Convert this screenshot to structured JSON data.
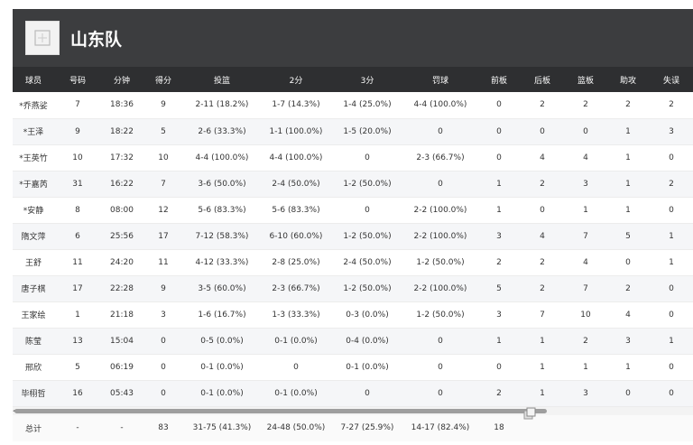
{
  "team": {
    "name": "山东队"
  },
  "columns": [
    "球员",
    "号码",
    "分钟",
    "得分",
    "投篮",
    "2分",
    "3分",
    "罚球",
    "前板",
    "后板",
    "篮板",
    "助攻",
    "失误"
  ],
  "players": [
    [
      "*乔燕娑",
      "7",
      "18:36",
      "9",
      "2-11 (18.2%)",
      "1-7 (14.3%)",
      "1-4 (25.0%)",
      "4-4 (100.0%)",
      "0",
      "2",
      "2",
      "2",
      "2"
    ],
    [
      "*王泽",
      "9",
      "18:22",
      "5",
      "2-6 (33.3%)",
      "1-1 (100.0%)",
      "1-5 (20.0%)",
      "0",
      "0",
      "0",
      "0",
      "1",
      "3"
    ],
    [
      "*王英竹",
      "10",
      "17:32",
      "10",
      "4-4 (100.0%)",
      "4-4 (100.0%)",
      "0",
      "2-3 (66.7%)",
      "0",
      "4",
      "4",
      "1",
      "0"
    ],
    [
      "*于嘉芮",
      "31",
      "16:22",
      "7",
      "3-6 (50.0%)",
      "2-4 (50.0%)",
      "1-2 (50.0%)",
      "0",
      "1",
      "2",
      "3",
      "1",
      "2"
    ],
    [
      "*安静",
      "8",
      "08:00",
      "12",
      "5-6 (83.3%)",
      "5-6 (83.3%)",
      "0",
      "2-2 (100.0%)",
      "1",
      "0",
      "1",
      "1",
      "0"
    ],
    [
      "隋文萍",
      "6",
      "25:56",
      "17",
      "7-12 (58.3%)",
      "6-10 (60.0%)",
      "1-2 (50.0%)",
      "2-2 (100.0%)",
      "3",
      "4",
      "7",
      "5",
      "1"
    ],
    [
      "王舒",
      "11",
      "24:20",
      "11",
      "4-12 (33.3%)",
      "2-8 (25.0%)",
      "2-4 (50.0%)",
      "1-2 (50.0%)",
      "2",
      "2",
      "4",
      "0",
      "1"
    ],
    [
      "唐子棋",
      "17",
      "22:28",
      "9",
      "3-5 (60.0%)",
      "2-3 (66.7%)",
      "1-2 (50.0%)",
      "2-2 (100.0%)",
      "5",
      "2",
      "7",
      "2",
      "0"
    ],
    [
      "王家绘",
      "1",
      "21:18",
      "3",
      "1-6 (16.7%)",
      "1-3 (33.3%)",
      "0-3 (0.0%)",
      "1-2 (50.0%)",
      "3",
      "7",
      "10",
      "4",
      "0"
    ],
    [
      "陈莹",
      "13",
      "15:04",
      "0",
      "0-5 (0.0%)",
      "0-1 (0.0%)",
      "0-4 (0.0%)",
      "0",
      "1",
      "1",
      "2",
      "3",
      "1"
    ],
    [
      "邢欣",
      "5",
      "06:19",
      "0",
      "0-1 (0.0%)",
      "0",
      "0-1 (0.0%)",
      "0",
      "0",
      "1",
      "1",
      "1",
      "0"
    ],
    [
      "毕栩哲",
      "16",
      "05:43",
      "0",
      "0-1 (0.0%)",
      "0-1 (0.0%)",
      "0",
      "0",
      "2",
      "1",
      "3",
      "0",
      "0"
    ]
  ],
  "totals": [
    "总计",
    "-",
    "-",
    "83",
    "31-75 (41.3%)",
    "24-48 (50.0%)",
    "7-27 (25.9%)",
    "14-17 (82.4%)",
    "18",
    "",
    "",
    "",
    ""
  ],
  "icons": {
    "logo": "team-logo-placeholder",
    "resize": "resize-handle-icon"
  }
}
